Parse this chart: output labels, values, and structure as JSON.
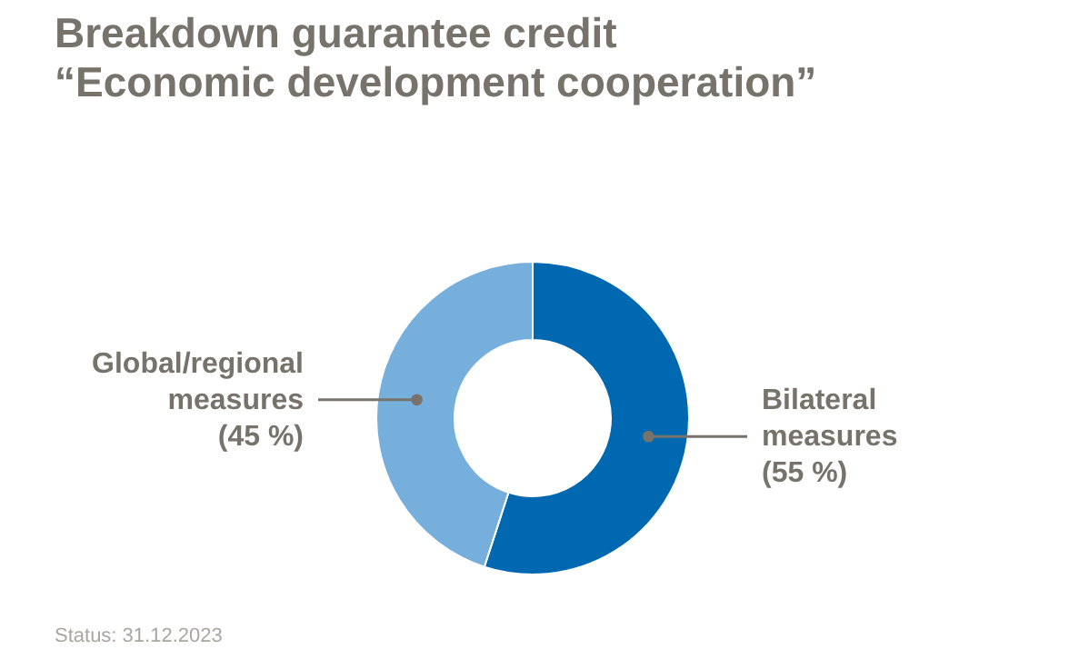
{
  "chart_data": {
    "type": "donut",
    "title": "Breakdown guarantee credit",
    "subtitle": "“Economic development cooperation”",
    "categories": [
      "Bilateral measures",
      "Global/regional measures"
    ],
    "values": [
      55,
      45
    ],
    "colors": [
      "#0068b1",
      "#76afdc"
    ],
    "value_labels": [
      "(55 %)",
      "(45 %)"
    ],
    "annotations": [
      "Status: 31.12.2023"
    ]
  }
}
